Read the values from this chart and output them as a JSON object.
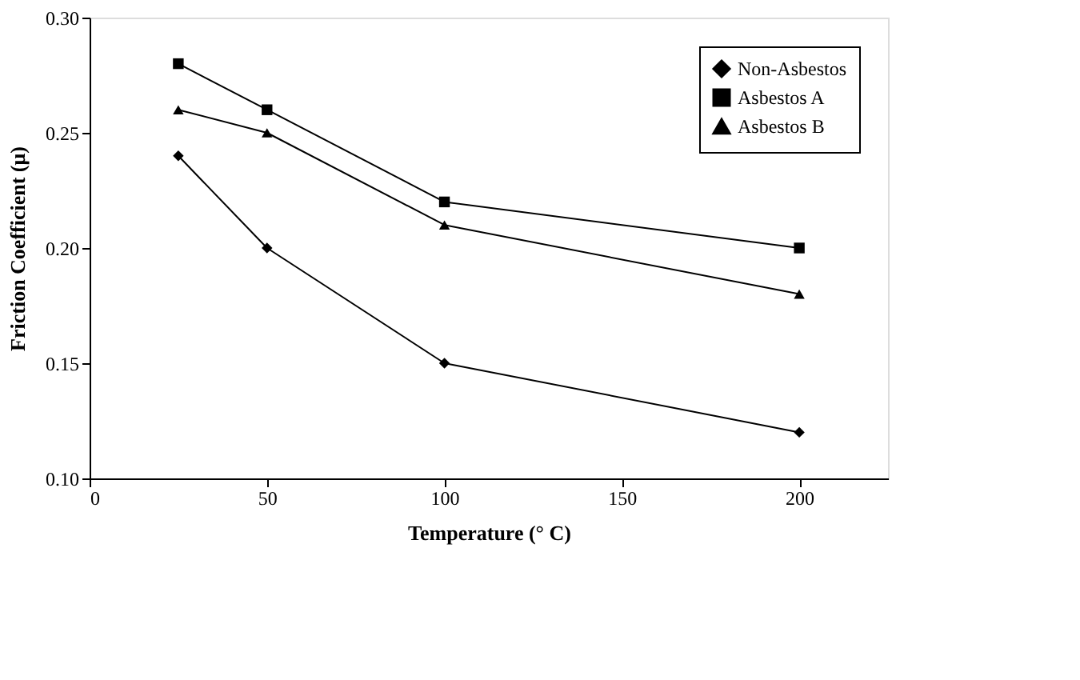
{
  "chart_data": {
    "type": "line",
    "xlabel": "Temperature (° C)",
    "ylabel": "Friction Coefficient (μ)",
    "x": [
      25,
      50,
      100,
      200
    ],
    "series": [
      {
        "name": "Non-Asbestos",
        "color": "#000000",
        "marker": "diamond",
        "values": [
          0.24,
          0.2,
          0.15,
          0.12
        ]
      },
      {
        "name": "Asbestos A",
        "color": "#000000",
        "marker": "square",
        "values": [
          0.28,
          0.26,
          0.22,
          0.2
        ]
      },
      {
        "name": "Asbestos B",
        "color": "#000000",
        "marker": "triangle",
        "values": [
          0.26,
          0.25,
          0.21,
          0.18
        ]
      }
    ],
    "xlim": [
      0,
      225
    ],
    "xticks": [
      0,
      50,
      100,
      150,
      200
    ],
    "ylim": [
      0.1,
      0.3
    ],
    "yticks": [
      {
        "value": 0.1,
        "label": "0.10"
      },
      0.15,
      {
        "value": 0.2,
        "label": "0.20"
      },
      0.25,
      {
        "value": 0.3,
        "label": "0.30"
      }
    ],
    "grid": false,
    "legend": "top right",
    "line_style": "solid"
  }
}
